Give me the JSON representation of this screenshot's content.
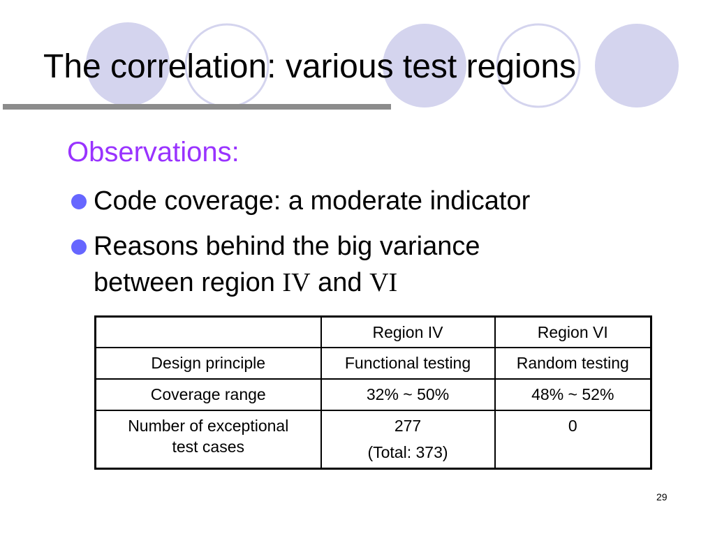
{
  "slide": {
    "title": "The correlation: various test regions",
    "subtitle": "Observations:",
    "bullets": [
      {
        "text": "Code coverage: a moderate indicator"
      },
      {
        "line1": "Reasons behind the big variance",
        "line2_prefix": "between region ",
        "region_a": "IV",
        "connector": " and ",
        "region_b": "VI"
      }
    ],
    "page_number": "29"
  },
  "table": {
    "headers": [
      "",
      "Region IV",
      "Region VI"
    ],
    "rows": [
      {
        "label": "Design principle",
        "region_iv": "Functional testing",
        "region_vi": "Random testing"
      },
      {
        "label": "Coverage range",
        "region_iv": "32% ~ 50%",
        "region_vi": "48% ~ 52%"
      },
      {
        "label_line1": "Number of exceptional",
        "label_line2": "test cases",
        "region_iv_line1": "277",
        "region_iv_line2": "(Total: 373)",
        "region_vi": "0"
      }
    ]
  },
  "theme": {
    "circle_fill": "#d4d4ee",
    "circle_stroke": "#d4d4ee",
    "rule_color": "#8c8c8c",
    "subtitle_color": "#9933ff",
    "bullet_color": "#6666ff"
  }
}
